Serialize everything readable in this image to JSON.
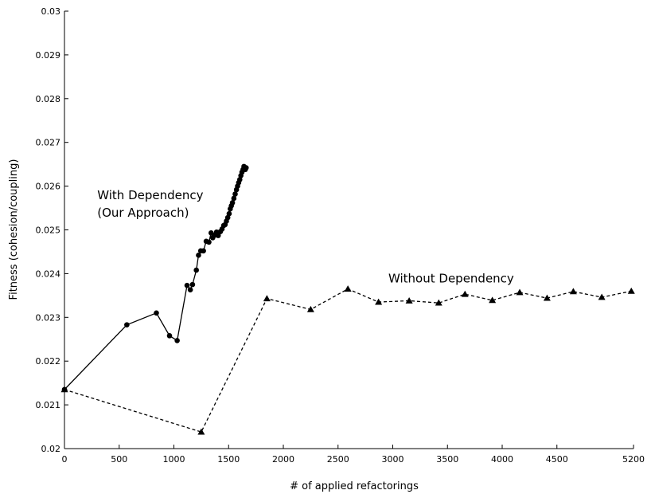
{
  "chart_data": {
    "type": "line",
    "title": "",
    "xlabel": "# of applied refactorings",
    "ylabel": "Fitness (cohesion/coupling)",
    "xlim": [
      0,
      5200
    ],
    "ylim": [
      0.02,
      0.03
    ],
    "x_ticks": [
      0,
      500,
      1000,
      1500,
      2000,
      2500,
      3000,
      3500,
      4000,
      4500,
      5200
    ],
    "x_tick_labels": [
      "0",
      "500",
      "1000",
      "1500",
      "2000",
      "2500",
      "3000",
      "3500",
      "4000",
      "4500",
      "5200"
    ],
    "y_ticks": [
      0.02,
      0.021,
      0.022,
      0.023,
      0.024,
      0.025,
      0.026,
      0.027,
      0.028,
      0.029,
      0.03
    ],
    "y_tick_labels": [
      "0.02",
      "0.021",
      "0.022",
      "0.023",
      "0.024",
      "0.025",
      "0.026",
      "0.027",
      "0.028",
      "0.029",
      "0.03"
    ],
    "grid": false,
    "annotations": [
      {
        "text": "With Dependency",
        "x": 300,
        "y": 0.0257
      },
      {
        "text": "(Our Approach)",
        "x": 300,
        "y": 0.0253
      },
      {
        "text": "Without Dependency",
        "x": 2960,
        "y": 0.0238
      }
    ],
    "series": [
      {
        "name": "With Dependency (Our Approach)",
        "style": "solid",
        "marker": "circle",
        "color": "#000000",
        "points": [
          [
            0,
            0.02135
          ],
          [
            570,
            0.02283
          ],
          [
            840,
            0.0231
          ],
          [
            960,
            0.02258
          ],
          [
            1030,
            0.02247
          ],
          [
            1120,
            0.02373
          ],
          [
            1150,
            0.02363
          ],
          [
            1170,
            0.02375
          ],
          [
            1205,
            0.02408
          ],
          [
            1225,
            0.02442
          ],
          [
            1245,
            0.02452
          ],
          [
            1270,
            0.02452
          ],
          [
            1295,
            0.02474
          ],
          [
            1320,
            0.02472
          ],
          [
            1340,
            0.02493
          ],
          [
            1355,
            0.02482
          ],
          [
            1375,
            0.02488
          ],
          [
            1390,
            0.02495
          ],
          [
            1405,
            0.02487
          ],
          [
            1425,
            0.02496
          ],
          [
            1440,
            0.02502
          ],
          [
            1455,
            0.0251
          ],
          [
            1468,
            0.02512
          ],
          [
            1480,
            0.0252
          ],
          [
            1492,
            0.02528
          ],
          [
            1505,
            0.02537
          ],
          [
            1515,
            0.02548
          ],
          [
            1525,
            0.02555
          ],
          [
            1535,
            0.02562
          ],
          [
            1548,
            0.02572
          ],
          [
            1560,
            0.02582
          ],
          [
            1572,
            0.02592
          ],
          [
            1582,
            0.026
          ],
          [
            1592,
            0.02608
          ],
          [
            1602,
            0.02615
          ],
          [
            1612,
            0.02624
          ],
          [
            1622,
            0.02632
          ],
          [
            1632,
            0.02638
          ],
          [
            1640,
            0.02645
          ],
          [
            1652,
            0.02638
          ],
          [
            1660,
            0.02642
          ]
        ]
      },
      {
        "name": "Without Dependency",
        "style": "dashed",
        "marker": "triangle",
        "color": "#000000",
        "points": [
          [
            0,
            0.02135
          ],
          [
            1250,
            0.02038
          ],
          [
            1850,
            0.02343
          ],
          [
            2250,
            0.02318
          ],
          [
            2590,
            0.02365
          ],
          [
            2870,
            0.02335
          ],
          [
            3150,
            0.02338
          ],
          [
            3420,
            0.02333
          ],
          [
            3660,
            0.02353
          ],
          [
            3910,
            0.02339
          ],
          [
            4160,
            0.02357
          ],
          [
            4410,
            0.02344
          ],
          [
            4650,
            0.02359
          ],
          [
            4910,
            0.02346
          ],
          [
            5180,
            0.0236
          ]
        ]
      }
    ]
  }
}
